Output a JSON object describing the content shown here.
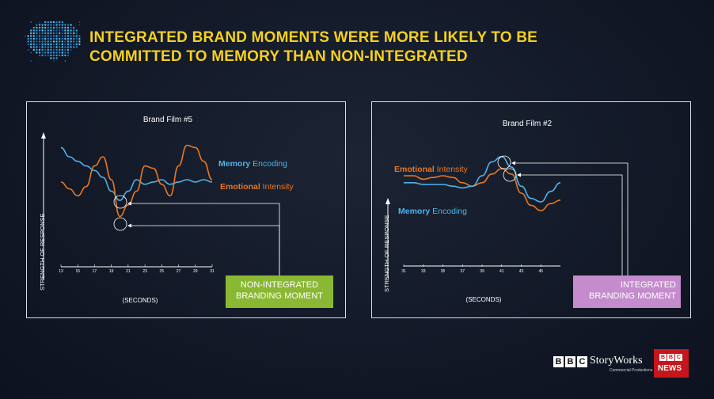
{
  "headline": {
    "line1": "INTEGRATED BRAND MOMENTS WERE MORE LIKELY TO BE",
    "line2": "COMMITTED TO MEMORY THAN NON-INTEGRATED"
  },
  "colors": {
    "headline": "#f5d020",
    "memory": "#4fb3e8",
    "emotional": "#e87722",
    "non_integrated_tag": "#8ab833",
    "integrated_tag": "#c48ccc"
  },
  "chart_data": [
    {
      "type": "line",
      "title": "Brand Film #5",
      "xlabel": "(SECONDS)",
      "ylabel": "STRENGTH OF RESPONSE",
      "x_ticks": [
        "13",
        "15",
        "17",
        "19",
        "21",
        "23",
        "25",
        "27",
        "29",
        "31"
      ],
      "xlim": [
        13,
        31
      ],
      "ylim": [
        0,
        100
      ],
      "series": [
        {
          "name": "Memory Encoding",
          "name_bold": "Memory",
          "name_rest": " Encoding",
          "x": [
            13,
            14,
            15,
            16,
            17,
            18,
            19,
            20,
            21,
            22,
            23,
            24,
            25,
            26,
            27,
            28,
            29,
            30,
            31
          ],
          "y": [
            88,
            80,
            76,
            72,
            68,
            62,
            50,
            42,
            50,
            60,
            56,
            58,
            60,
            56,
            58,
            60,
            58,
            60,
            58
          ]
        },
        {
          "name": "Emotional Intensity",
          "name_bold": "Emotional",
          "name_rest": " Intensity",
          "x": [
            13,
            14,
            15,
            16,
            17,
            18,
            19,
            20,
            21,
            22,
            23,
            24,
            25,
            26,
            27,
            28,
            29,
            30,
            31
          ],
          "y": [
            58,
            52,
            46,
            54,
            72,
            80,
            60,
            28,
            38,
            50,
            72,
            70,
            56,
            46,
            72,
            90,
            88,
            76,
            60
          ]
        }
      ],
      "annotation": "NON-INTEGRATED BRANDING MOMENT"
    },
    {
      "type": "line",
      "title": "Brand Film #2",
      "xlabel": "(SECONDS)",
      "ylabel": "STRENGTH OF RESPONSE",
      "x_ticks": [
        "31",
        "33",
        "35",
        "37",
        "39",
        "41",
        "43",
        "45"
      ],
      "xlim": [
        31,
        47
      ],
      "ylim": [
        0,
        100
      ],
      "series": [
        {
          "name": "Emotional Intensity",
          "name_bold": "Emotional",
          "name_rest": " Intensity",
          "x": [
            31,
            32,
            33,
            34,
            35,
            36,
            37,
            38,
            39,
            40,
            41,
            42,
            43,
            44,
            45,
            46,
            47
          ],
          "y": [
            70,
            70,
            66,
            68,
            70,
            68,
            62,
            58,
            62,
            72,
            78,
            72,
            50,
            36,
            30,
            38,
            42
          ]
        },
        {
          "name": "Memory Encoding",
          "name_bold": "Memory",
          "name_rest": " Encoding",
          "x": [
            31,
            32,
            33,
            34,
            35,
            36,
            37,
            38,
            39,
            40,
            41,
            42,
            43,
            44,
            45,
            46,
            47
          ],
          "y": [
            62,
            62,
            60,
            60,
            60,
            58,
            56,
            58,
            70,
            86,
            92,
            80,
            58,
            44,
            40,
            52,
            62
          ]
        }
      ],
      "annotation": "INTEGRATED BRANDING MOMENT"
    }
  ],
  "footer": {
    "bbc_letters": [
      "B",
      "B",
      "C"
    ],
    "storyworks": "StoryWorks",
    "storyworks_sub": "Commercial Productions",
    "news": "NEWS"
  }
}
